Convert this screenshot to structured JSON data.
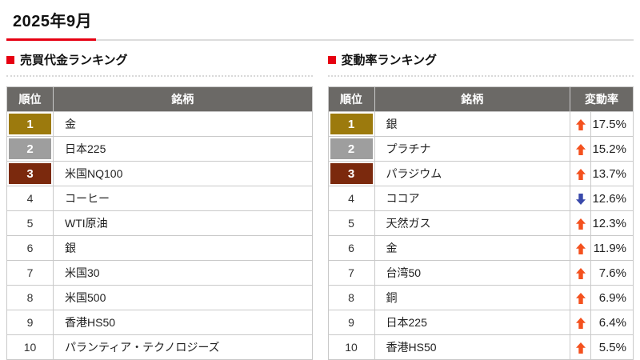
{
  "page": {
    "title": "2025年9月"
  },
  "colors": {
    "accent_red": "#e60012",
    "header_gray": "#6b6966",
    "gold": "#9c7a0d",
    "silver": "#9e9e9e",
    "bronze": "#7b290d",
    "up_arrow": "#f4511e",
    "down_arrow": "#3949ab",
    "cell_border": "#c9c9c9"
  },
  "left_table": {
    "title": "売買代金ランキング",
    "columns": [
      "順位",
      "銘柄"
    ],
    "rows": [
      {
        "rank": "1",
        "name": "金"
      },
      {
        "rank": "2",
        "name": "日本225"
      },
      {
        "rank": "3",
        "name": "米国NQ100"
      },
      {
        "rank": "4",
        "name": "コーヒー"
      },
      {
        "rank": "5",
        "name": "WTI原油"
      },
      {
        "rank": "6",
        "name": "銀"
      },
      {
        "rank": "7",
        "name": "米国30"
      },
      {
        "rank": "8",
        "name": "米国500"
      },
      {
        "rank": "9",
        "name": "香港HS50"
      },
      {
        "rank": "10",
        "name": "パランティア・テクノロジーズ"
      }
    ]
  },
  "right_table": {
    "title": "変動率ランキング",
    "columns": [
      "順位",
      "銘柄",
      "変動率"
    ],
    "rows": [
      {
        "rank": "1",
        "name": "銀",
        "direction": "up",
        "change": "17.5%"
      },
      {
        "rank": "2",
        "name": "プラチナ",
        "direction": "up",
        "change": "15.2%"
      },
      {
        "rank": "3",
        "name": "パラジウム",
        "direction": "up",
        "change": "13.7%"
      },
      {
        "rank": "4",
        "name": "ココア",
        "direction": "down",
        "change": "12.6%"
      },
      {
        "rank": "5",
        "name": "天然ガス",
        "direction": "up",
        "change": "12.3%"
      },
      {
        "rank": "6",
        "name": "金",
        "direction": "up",
        "change": "11.9%"
      },
      {
        "rank": "7",
        "name": "台湾50",
        "direction": "up",
        "change": "7.6%"
      },
      {
        "rank": "8",
        "name": "銅",
        "direction": "up",
        "change": "6.9%"
      },
      {
        "rank": "9",
        "name": "日本225",
        "direction": "up",
        "change": "6.4%"
      },
      {
        "rank": "10",
        "name": "香港HS50",
        "direction": "up",
        "change": "5.5%"
      }
    ]
  }
}
